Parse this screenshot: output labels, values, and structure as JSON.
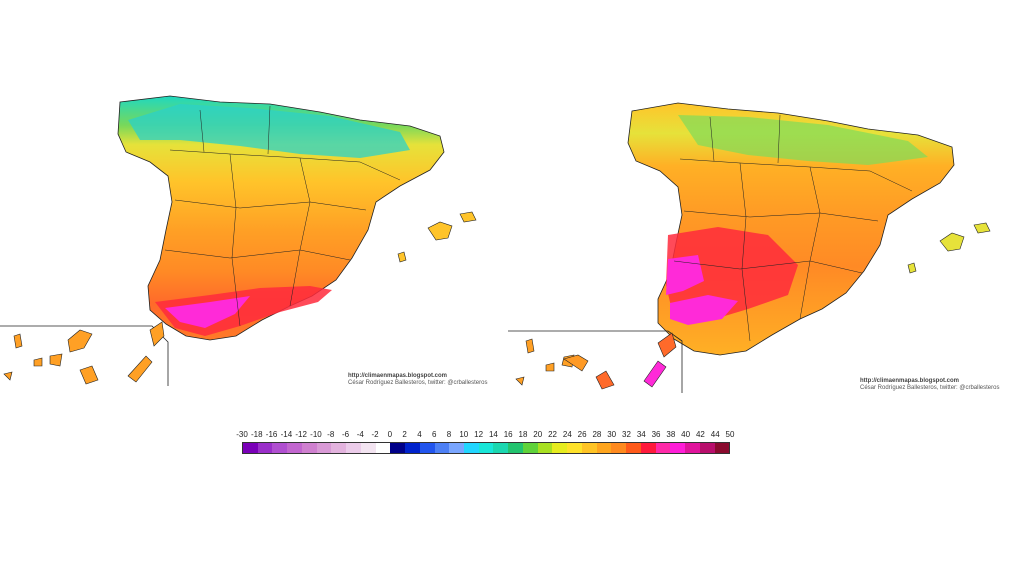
{
  "maps": [
    {
      "credit_line1": "http://climaenmapas.blogspot.com",
      "credit_line2": "César Rodríguez Ballesteros, twitter: @crballesteros"
    },
    {
      "credit_line1": "http://climaenmapas.blogspot.com",
      "credit_line2": "César Rodríguez Ballesteros, twitter: @crballesteros"
    }
  ],
  "legend": {
    "labels": [
      "-30",
      "-18",
      "-16",
      "-14",
      "-12",
      "-10",
      "-8",
      "-6",
      "-4",
      "-2",
      "0",
      "2",
      "4",
      "6",
      "8",
      "10",
      "12",
      "14",
      "16",
      "18",
      "20",
      "22",
      "24",
      "26",
      "28",
      "30",
      "32",
      "34",
      "36",
      "38",
      "40",
      "42",
      "44",
      "50"
    ],
    "colors": [
      "#7a00b8",
      "#9a2fc9",
      "#b04fd0",
      "#c266cf",
      "#cf80cf",
      "#d99ad6",
      "#e3b3de",
      "#ecccea",
      "#f3e4f1",
      "#ffffff",
      "#000088",
      "#0022cc",
      "#2255ee",
      "#4d80f5",
      "#7aa6ff",
      "#22d6ff",
      "#19e6d8",
      "#1bd7b0",
      "#22c36e",
      "#5fd23a",
      "#a8e022",
      "#e6ec1f",
      "#ffe22a",
      "#ffc425",
      "#ffa51e",
      "#ff8a1f",
      "#ff5a1a",
      "#ff1a3c",
      "#ff2aa8",
      "#ff1ed8",
      "#e0149c",
      "#b80e6c",
      "#8a0a2e"
    ]
  },
  "colors": {
    "cold": "#2bd2c8",
    "cool": "#7fdc5a",
    "mild": "#e6e23a",
    "warm": "#ffc42a",
    "hot": "#ff9a25",
    "hotter": "#ff6a2a",
    "very_hot": "#ff2a3c",
    "extreme": "#ff2ad8",
    "border": "#222222"
  }
}
